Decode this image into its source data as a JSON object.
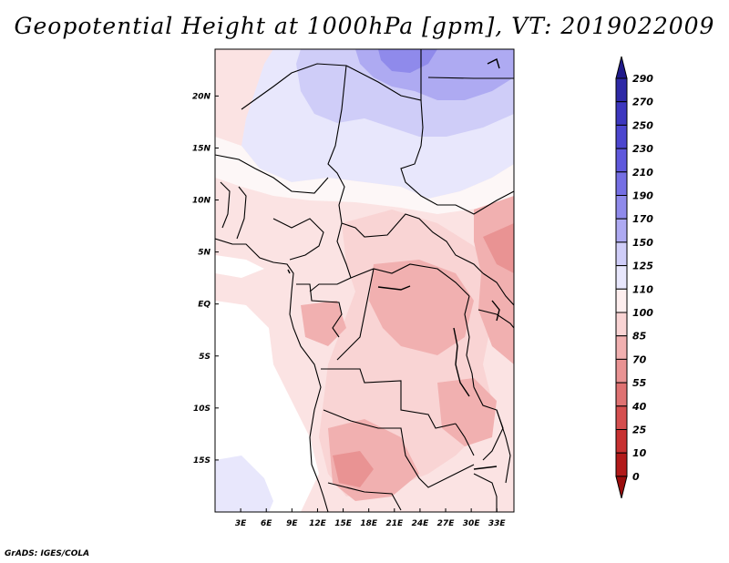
{
  "title": "Geopotential Height at 1000hPa [gpm], VT: 2019022009",
  "credit": "GrADS: IGES/COLA",
  "map": {
    "lon_range": [
      0,
      35
    ],
    "lat_range": [
      -20,
      24.5
    ],
    "xticks": [
      {
        "lon": 3,
        "label": "3E"
      },
      {
        "lon": 6,
        "label": "6E"
      },
      {
        "lon": 9,
        "label": "9E"
      },
      {
        "lon": 12,
        "label": "12E"
      },
      {
        "lon": 15,
        "label": "15E"
      },
      {
        "lon": 18,
        "label": "18E"
      },
      {
        "lon": 21,
        "label": "21E"
      },
      {
        "lon": 24,
        "label": "24E"
      },
      {
        "lon": 27,
        "label": "27E"
      },
      {
        "lon": 30,
        "label": "30E"
      },
      {
        "lon": 33,
        "label": "33E"
      }
    ],
    "yticks": [
      {
        "lat": 20,
        "label": "20N"
      },
      {
        "lat": 15,
        "label": "15N"
      },
      {
        "lat": 10,
        "label": "10N"
      },
      {
        "lat": 5,
        "label": "5N"
      },
      {
        "lat": 0,
        "label": "EQ"
      },
      {
        "lat": -5,
        "label": "5S"
      },
      {
        "lat": -10,
        "label": "10S"
      },
      {
        "lat": -15,
        "label": "15S"
      }
    ]
  },
  "colorbar": {
    "levels": [
      "290",
      "270",
      "250",
      "230",
      "210",
      "190",
      "170",
      "150",
      "125",
      "110",
      "100",
      "85",
      "70",
      "55",
      "40",
      "25",
      "10",
      "0"
    ],
    "colors": [
      "#201a8a",
      "#2e29a6",
      "#3d37bf",
      "#4c46cf",
      "#5f58dc",
      "#756fe4",
      "#8f8aeb",
      "#aeaaf2",
      "#cfcdf8",
      "#e8e7fc",
      "#fdeeee",
      "#f9d4d4",
      "#f1b0b0",
      "#e99393",
      "#df7272",
      "#d54f4f",
      "#c73131",
      "#b21a1a",
      "#9a0d0d"
    ]
  }
}
